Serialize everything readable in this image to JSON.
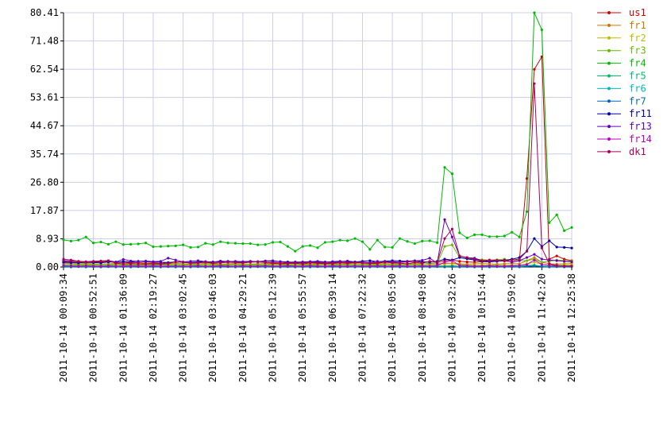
{
  "chart_data": {
    "type": "line",
    "categories": [
      "2011-10-14 00:09:34",
      null,
      null,
      null,
      "2011-10-14 00:52:51",
      null,
      null,
      null,
      "2011-10-14 01:36:09",
      null,
      null,
      null,
      "2011-10-14 02:19:27",
      null,
      null,
      null,
      "2011-10-14 03:02:45",
      null,
      null,
      null,
      "2011-10-14 03:46:03",
      null,
      null,
      null,
      "2011-10-14 04:29:21",
      null,
      null,
      null,
      "2011-10-14 05:12:39",
      null,
      null,
      null,
      "2011-10-14 05:55:57",
      null,
      null,
      null,
      "2011-10-14 06:39:14",
      null,
      null,
      null,
      "2011-10-14 07:22:32",
      null,
      null,
      null,
      "2011-10-14 08:05:50",
      null,
      null,
      null,
      "2011-10-14 08:49:08",
      null,
      null,
      null,
      "2011-10-14 09:32:26",
      null,
      null,
      null,
      "2011-10-14 10:15:44",
      null,
      null,
      null,
      "2011-10-14 10:59:02",
      null,
      null,
      null,
      "2011-10-14 11:42:20",
      null,
      null,
      null,
      "2011-10-14 12:25:38"
    ],
    "ylim": [
      0,
      80.41
    ],
    "yticks": [
      {
        "value": 0,
        "label": "0.00"
      },
      8.93,
      17.87,
      {
        "value": 26.8,
        "label": "26.80"
      },
      35.74,
      44.67,
      53.61,
      62.54,
      71.48,
      80.41
    ],
    "grid": true,
    "series": [
      {
        "name": "us1",
        "color": "#cc0000",
        "values": [
          1.8,
          1.6,
          1.5,
          1.4,
          1.5,
          1.6,
          1.8,
          1.4,
          1.5,
          1.3,
          1.4,
          1.2,
          1.3,
          1.1,
          1.4,
          1.6,
          1.5,
          1.3,
          1.6,
          1.4,
          1.5,
          1.6,
          1.7,
          1.6,
          1.5,
          1.6,
          1.7,
          1.5,
          1.4,
          1.3,
          1.2,
          1.4,
          1.3,
          1.5,
          1.4,
          1.2,
          1.3,
          1.5,
          1.4,
          1.6,
          1.5,
          1.3,
          1.4,
          1.6,
          1.5,
          1.4,
          1.6,
          1.8,
          1.5,
          1.7,
          1.4,
          2.0,
          2.2,
          1.8,
          1.6,
          1.5,
          1.7,
          1.6,
          1.8,
          1.9,
          1.6,
          2.0,
          28.0,
          62.5,
          66.5,
          2.5,
          3.5,
          2.5,
          2.0
        ]
      },
      {
        "name": "fr1",
        "color": "#cc7700",
        "values": [
          1.3,
          1.1,
          1.0,
          1.1,
          1.0,
          0.9,
          1.0,
          1.1,
          1.0,
          0.9,
          1.0,
          1.1,
          1.0,
          0.9,
          1.0,
          1.1,
          1.0,
          0.9,
          1.0,
          1.1,
          1.0,
          0.9,
          1.0,
          1.1,
          1.0,
          0.9,
          1.0,
          1.1,
          1.0,
          0.9,
          1.0,
          1.1,
          1.0,
          0.9,
          1.0,
          1.1,
          1.0,
          0.9,
          1.0,
          1.1,
          1.0,
          0.9,
          1.0,
          1.1,
          1.0,
          0.9,
          1.0,
          1.1,
          1.0,
          0.9,
          1.0,
          1.1,
          1.2,
          1.0,
          0.9,
          1.0,
          1.1,
          1.0,
          0.9,
          1.0,
          1.1,
          1.0,
          2.0,
          3.0,
          1.5,
          1.0,
          0.9,
          1.0,
          1.1
        ]
      },
      {
        "name": "fr2",
        "color": "#bbbb00",
        "values": [
          0.6,
          0.5,
          0.6,
          0.7,
          0.6,
          0.5,
          0.6,
          0.7,
          0.6,
          0.5,
          0.6,
          0.5,
          0.6,
          0.7,
          0.6,
          0.5,
          0.6,
          0.7,
          0.6,
          0.5,
          0.6,
          0.5,
          0.6,
          0.7,
          0.6,
          0.5,
          0.6,
          0.7,
          0.6,
          0.5,
          0.6,
          0.5,
          0.6,
          0.7,
          0.6,
          0.5,
          0.6,
          0.7,
          0.6,
          0.5,
          0.6,
          0.5,
          0.6,
          0.7,
          0.6,
          0.5,
          0.6,
          0.7,
          0.6,
          0.5,
          0.6,
          0.5,
          0.6,
          0.7,
          0.6,
          0.5,
          0.6,
          0.7,
          0.6,
          0.5,
          0.6,
          0.5,
          1.0,
          1.5,
          0.8,
          0.6,
          0.5,
          0.6,
          0.7
        ]
      },
      {
        "name": "fr3",
        "color": "#66bb00",
        "values": [
          1.0,
          0.9,
          0.8,
          0.9,
          0.8,
          0.8,
          0.9,
          0.8,
          0.7,
          0.8,
          0.7,
          0.8,
          0.8,
          0.7,
          0.8,
          0.9,
          0.8,
          0.7,
          0.8,
          0.9,
          0.8,
          0.7,
          0.8,
          0.9,
          0.8,
          0.8,
          0.7,
          0.8,
          0.9,
          0.8,
          0.7,
          0.8,
          0.8,
          0.7,
          0.8,
          0.9,
          0.8,
          0.7,
          0.8,
          0.9,
          0.8,
          0.7,
          0.8,
          0.8,
          0.7,
          0.8,
          0.9,
          0.8,
          0.9,
          1.2,
          1.0,
          6.5,
          7.0,
          3.0,
          2.7,
          2.5,
          2.3,
          2.2,
          2.3,
          2.5,
          2.2,
          2.0,
          2.0,
          2.5,
          1.5,
          1.8,
          2.2,
          2.0,
          1.8
        ]
      },
      {
        "name": "fr4",
        "color": "#00bb00",
        "values": [
          8.6,
          8.2,
          8.5,
          9.5,
          7.6,
          7.9,
          7.2,
          8.0,
          7.1,
          7.2,
          7.3,
          7.6,
          6.4,
          6.5,
          6.6,
          6.7,
          7.0,
          6.2,
          6.3,
          7.5,
          7.1,
          8.0,
          7.6,
          7.5,
          7.4,
          7.4,
          7.0,
          7.1,
          7.8,
          7.9,
          6.5,
          5.0,
          6.5,
          6.8,
          6.1,
          7.8,
          8.0,
          8.5,
          8.3,
          9.0,
          8.0,
          5.6,
          8.5,
          6.3,
          6.2,
          9.0,
          8.1,
          7.4,
          8.2,
          8.3,
          7.7,
          31.5,
          29.5,
          10.8,
          9.2,
          10.2,
          10.2,
          9.6,
          9.6,
          9.8,
          11.0,
          9.5,
          17.5,
          80.41,
          75.0,
          14.0,
          16.5,
          11.5,
          12.5
        ]
      },
      {
        "name": "fr5",
        "color": "#00bb66",
        "values": [
          0.3,
          0.2,
          0.3,
          0.2,
          0.3,
          0.2,
          0.3,
          0.2,
          0.3,
          0.2,
          0.3,
          0.2,
          0.3,
          0.2,
          0.3,
          0.2,
          0.3,
          0.2,
          0.3,
          0.2,
          0.3,
          0.2,
          0.3,
          0.2,
          0.3,
          0.2,
          0.3,
          0.2,
          0.3,
          0.2,
          0.3,
          0.2,
          0.3,
          0.2,
          0.3,
          0.2,
          0.3,
          0.2,
          0.3,
          0.2,
          0.3,
          0.2,
          0.3,
          0.2,
          0.3,
          0.2,
          0.3,
          0.2,
          0.3,
          0.2,
          0.3,
          0.2,
          0.3,
          0.2,
          0.3,
          0.2,
          0.3,
          0.2,
          0.3,
          0.2,
          0.3,
          0.2,
          0.5,
          0.6,
          0.3,
          0.2,
          0.3,
          0.2,
          0.3
        ]
      },
      {
        "name": "fr6",
        "color": "#00bbbb",
        "values": [
          0.2,
          0.1,
          0.2,
          0.1,
          0.2,
          0.1,
          0.2,
          0.1,
          0.2,
          0.1,
          0.2,
          0.1,
          0.2,
          0.1,
          0.2,
          0.1,
          0.2,
          0.1,
          0.2,
          0.1,
          0.2,
          0.1,
          0.2,
          0.1,
          0.2,
          0.1,
          0.2,
          0.1,
          0.2,
          0.1,
          0.2,
          0.1,
          0.2,
          0.1,
          0.2,
          0.1,
          0.2,
          0.1,
          0.2,
          0.1,
          0.2,
          0.1,
          0.2,
          0.1,
          0.2,
          0.1,
          0.2,
          0.1,
          0.2,
          0.1,
          0.2,
          0.1,
          0.2,
          0.1,
          0.2,
          0.1,
          0.2,
          0.1,
          0.2,
          0.1,
          0.2,
          0.1,
          0.3,
          0.4,
          0.2,
          0.1,
          0.2,
          0.1,
          0.2
        ]
      },
      {
        "name": "fr7",
        "color": "#0066bb",
        "values": [
          0.1,
          0.0,
          0.1,
          0.0,
          0.1,
          0.0,
          0.1,
          0.0,
          0.1,
          0.0,
          0.1,
          0.0,
          0.1,
          0.0,
          0.1,
          0.0,
          0.1,
          0.0,
          0.1,
          0.0,
          0.1,
          0.0,
          0.1,
          0.0,
          0.1,
          0.0,
          0.1,
          0.0,
          0.1,
          0.0,
          0.1,
          0.0,
          0.1,
          0.0,
          0.1,
          0.0,
          0.1,
          0.0,
          0.1,
          0.0,
          0.1,
          0.0,
          0.1,
          0.0,
          0.1,
          0.0,
          0.1,
          0.0,
          0.1,
          0.0,
          0.1,
          0.0,
          0.1,
          0.0,
          0.1,
          0.0,
          0.1,
          0.0,
          0.1,
          0.0,
          0.1,
          0.0,
          0.2,
          0.3,
          0.1,
          0.0,
          0.1,
          0.0,
          0.1
        ]
      },
      {
        "name": "fr11",
        "color": "#0000aa",
        "values": [
          1.5,
          1.4,
          1.3,
          1.5,
          1.4,
          1.3,
          1.6,
          1.5,
          1.7,
          1.6,
          1.8,
          1.7,
          1.6,
          1.5,
          1.4,
          1.6,
          1.5,
          1.4,
          1.6,
          1.7,
          1.6,
          1.7,
          1.8,
          1.7,
          1.6,
          1.8,
          1.7,
          1.9,
          1.8,
          1.7,
          1.6,
          1.5,
          1.6,
          1.7,
          1.6,
          1.5,
          1.7,
          1.8,
          1.7,
          1.6,
          1.8,
          2.0,
          1.7,
          1.8,
          2.0,
          1.9,
          1.8,
          2.0,
          1.6,
          1.5,
          1.8,
          2.5,
          2.2,
          3.0,
          2.6,
          2.2,
          1.8,
          1.7,
          1.8,
          2.0,
          2.5,
          3.0,
          5.0,
          9.0,
          6.5,
          8.3,
          6.3,
          6.2,
          6.0
        ]
      },
      {
        "name": "fr13",
        "color": "#6600bb",
        "values": [
          2.0,
          1.9,
          1.8,
          1.7,
          1.8,
          1.9,
          2.0,
          1.6,
          2.4,
          1.9,
          1.8,
          1.9,
          1.7,
          1.8,
          2.8,
          2.2,
          1.6,
          1.8,
          2.0,
          1.7,
          1.5,
          1.9,
          1.7,
          1.8,
          1.7,
          1.8,
          1.6,
          1.9,
          2.0,
          1.7,
          1.4,
          1.6,
          1.5,
          1.7,
          1.8,
          1.6,
          1.5,
          1.7,
          1.9,
          1.6,
          1.5,
          1.4,
          1.8,
          1.6,
          1.7,
          1.5,
          1.8,
          1.9,
          2.1,
          2.8,
          1.2,
          15.0,
          9.5,
          3.5,
          3.0,
          2.8,
          2.0,
          1.8,
          2.0,
          2.2,
          1.5,
          2.0,
          3.0,
          4.0,
          2.5,
          2.2,
          2.0,
          1.8,
          1.6
        ]
      },
      {
        "name": "fr14",
        "color": "#bb00bb",
        "values": [
          0.5,
          0.4,
          0.3,
          0.4,
          0.3,
          0.3,
          0.4,
          0.3,
          0.3,
          0.4,
          0.3,
          0.3,
          0.4,
          0.3,
          0.3,
          0.4,
          0.3,
          0.3,
          0.4,
          0.3,
          0.3,
          0.4,
          0.3,
          0.3,
          0.4,
          0.3,
          0.3,
          0.4,
          0.3,
          0.3,
          0.4,
          0.3,
          0.3,
          0.4,
          0.3,
          0.3,
          0.4,
          0.3,
          0.3,
          0.4,
          0.3,
          0.3,
          0.4,
          0.3,
          0.3,
          0.4,
          0.3,
          0.3,
          0.4,
          0.3,
          0.5,
          1.5,
          2.0,
          0.5,
          0.4,
          0.3,
          0.3,
          0.4,
          0.3,
          0.3,
          0.4,
          0.5,
          0.8,
          2.2,
          0.8,
          0.5,
          0.4,
          0.3,
          0.3
        ]
      },
      {
        "name": "dk1",
        "color": "#aa0055",
        "values": [
          2.5,
          2.2,
          1.8,
          1.6,
          1.7,
          1.8,
          2.0,
          1.2,
          1.0,
          1.1,
          1.0,
          0.9,
          1.0,
          0.9,
          1.1,
          1.6,
          1.5,
          1.2,
          1.3,
          1.5,
          1.2,
          1.3,
          1.5,
          1.4,
          1.3,
          1.5,
          1.6,
          1.4,
          1.2,
          1.0,
          1.1,
          1.2,
          1.0,
          1.3,
          1.2,
          1.0,
          1.1,
          1.3,
          1.2,
          1.4,
          1.3,
          1.1,
          1.2,
          1.5,
          1.3,
          1.2,
          1.0,
          1.5,
          1.2,
          1.8,
          1.5,
          9.0,
          12.0,
          3.5,
          3.0,
          2.5,
          2.0,
          2.2,
          2.1,
          2.0,
          2.2,
          2.5,
          5.0,
          58.0,
          6.0,
          1.0,
          0.5,
          0.3,
          0.3
        ]
      }
    ]
  }
}
